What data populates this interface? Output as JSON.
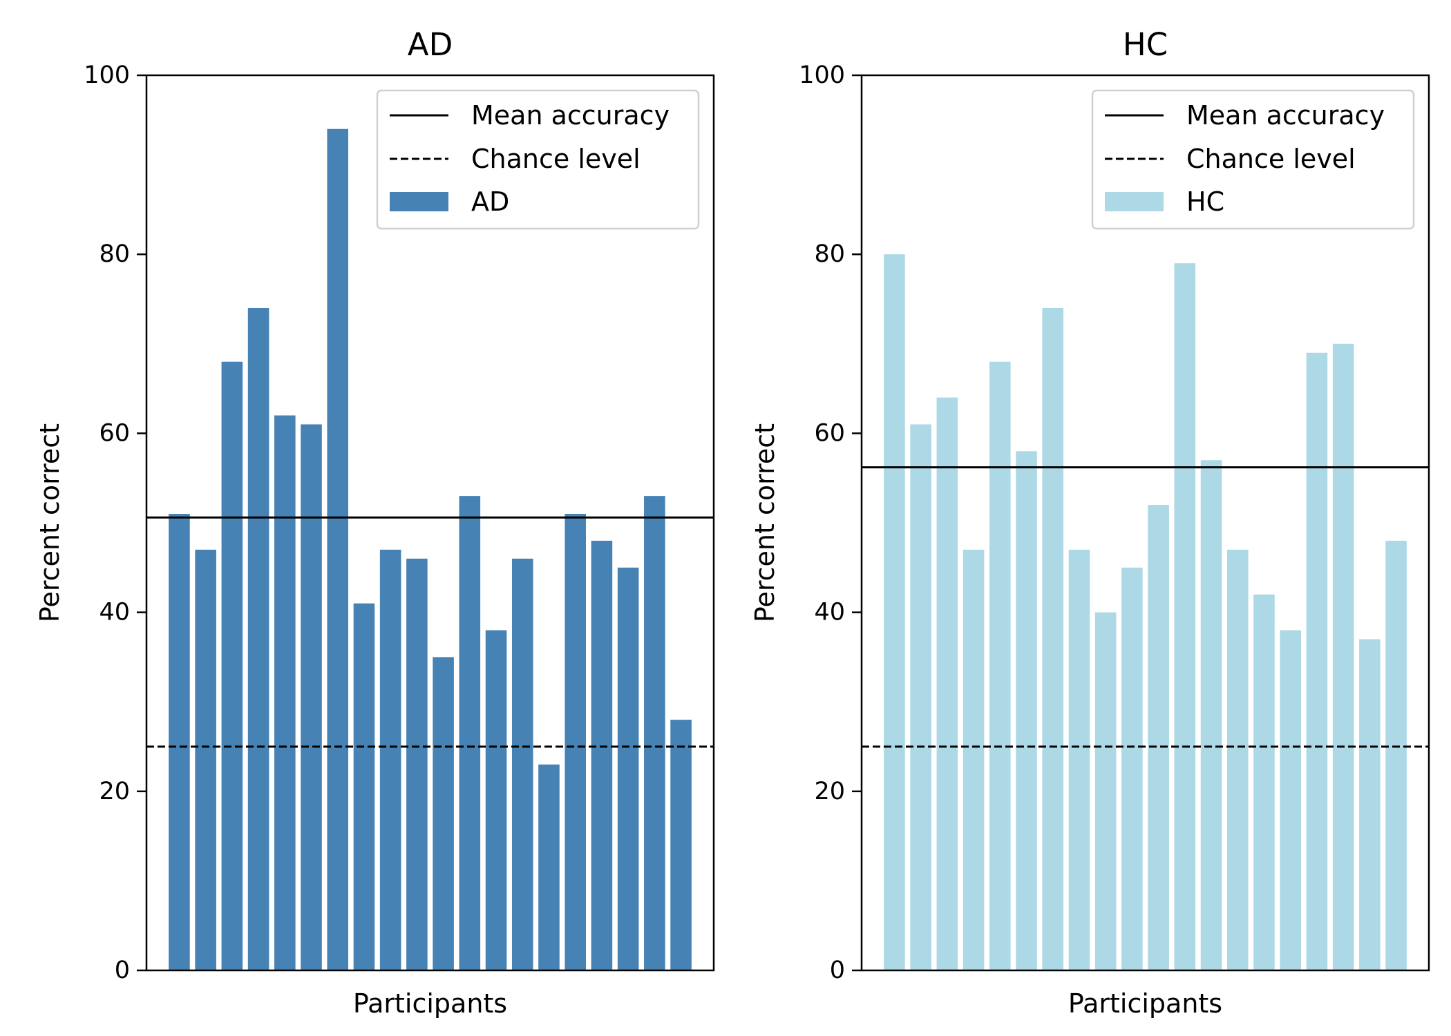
{
  "chart_data": [
    {
      "type": "bar",
      "title": "AD",
      "xlabel": "Participants",
      "ylabel": "Percent correct",
      "ylim": [
        0,
        100
      ],
      "yticks": [
        0,
        20,
        40,
        60,
        80,
        100
      ],
      "values": [
        51,
        47,
        68,
        74,
        62,
        61,
        94,
        41,
        47,
        46,
        35,
        53,
        38,
        46,
        23,
        51,
        48,
        45,
        53,
        28
      ],
      "mean_accuracy": 50.6,
      "chance_level": 25,
      "bar_color": "#4682b4",
      "legend": {
        "placement": "top-right",
        "mean_label": "Mean accuracy",
        "chance_label": "Chance level",
        "series_label": "AD"
      }
    },
    {
      "type": "bar",
      "title": "HC",
      "xlabel": "Participants",
      "ylabel": "Percent correct",
      "ylim": [
        0,
        100
      ],
      "yticks": [
        0,
        20,
        40,
        60,
        80,
        100
      ],
      "values": [
        80,
        61,
        64,
        47,
        68,
        58,
        74,
        47,
        40,
        45,
        52,
        79,
        57,
        47,
        42,
        38,
        69,
        70,
        37,
        48
      ],
      "mean_accuracy": 56.2,
      "chance_level": 25,
      "bar_color": "#add8e6",
      "legend": {
        "placement": "top-right",
        "mean_label": "Mean accuracy",
        "chance_label": "Chance level",
        "series_label": "HC"
      }
    }
  ]
}
